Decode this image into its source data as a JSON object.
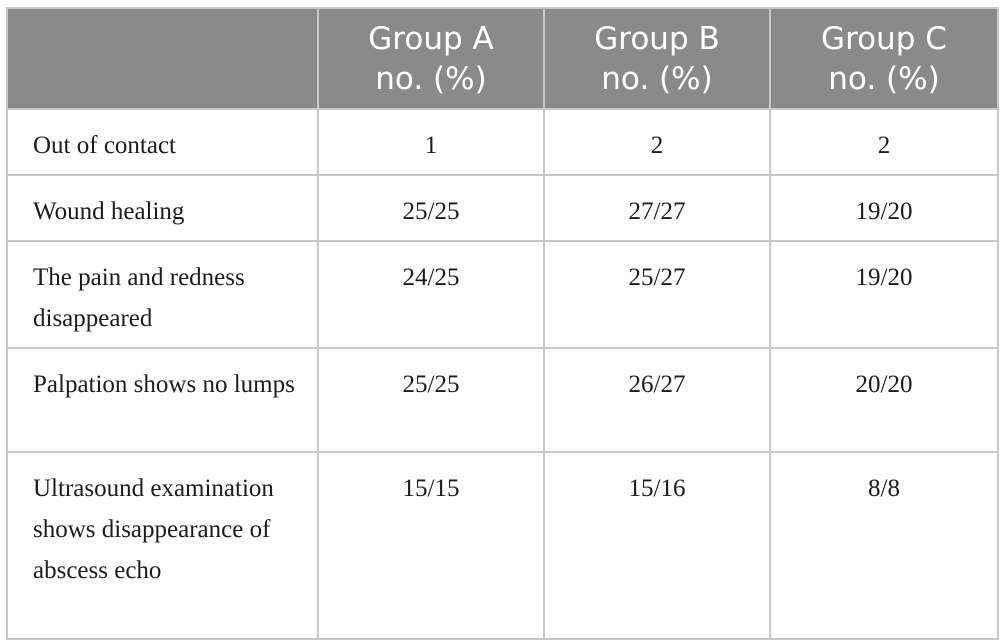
{
  "header": {
    "columns": [
      {
        "line1": "",
        "line2": ""
      },
      {
        "line1": "Group A",
        "line2": "no. (%)"
      },
      {
        "line1": "Group B",
        "line2": "no. (%)"
      },
      {
        "line1": "Group C",
        "line2": "no. (%)"
      }
    ]
  },
  "rows": [
    {
      "label": "Out of contact",
      "a": "1",
      "b": "2",
      "c": "2"
    },
    {
      "label": "Wound healing",
      "a": "25/25",
      "b": "27/27",
      "c": "19/20"
    },
    {
      "label": "The pain and redness disappeared",
      "a": "24/25",
      "b": "25/27",
      "c": "19/20"
    },
    {
      "label": "Palpation shows no lumps",
      "a": "25/25",
      "b": "26/27",
      "c": "20/20"
    },
    {
      "label": "Ultrasound examination shows disappearance of abscess echo",
      "a": "15/15",
      "b": "15/16",
      "c": "8/8"
    }
  ]
}
